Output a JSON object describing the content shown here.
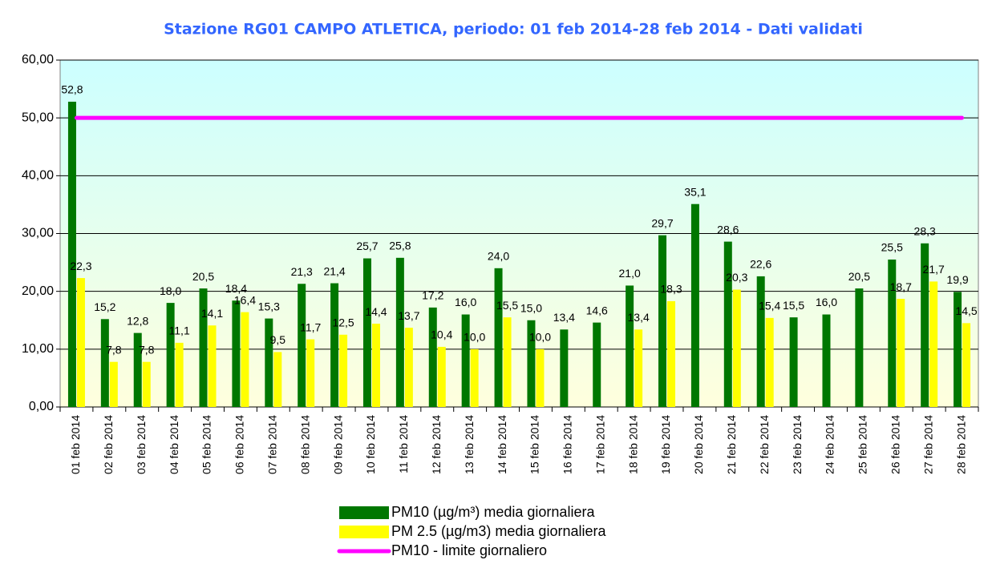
{
  "chart_data": {
    "type": "bar",
    "title": "Stazione RG01 CAMPO ATLETICA, periodo: 01 feb 2014-28 feb 2014 - Dati validati",
    "categories": [
      "01 feb 2014",
      "02 feb 2014",
      "03 feb 2014",
      "04 feb 2014",
      "05 feb 2014",
      "06 feb 2014",
      "07 feb 2014",
      "08 feb 2014",
      "09 feb 2014",
      "10 feb 2014",
      "11 feb 2014",
      "12 feb 2014",
      "13 feb 2014",
      "14 feb 2014",
      "15 feb 2014",
      "16 feb 2014",
      "17 feb 2014",
      "18 feb 2014",
      "19 feb 2014",
      "20 feb 2014",
      "21 feb 2014",
      "22 feb 2014",
      "23 feb 2014",
      "24 feb 2014",
      "25 feb 2014",
      "26 feb 2014",
      "27 feb 2014",
      "28 feb 2014"
    ],
    "series": [
      {
        "name": "PM10 (µg/m³) media giornaliera",
        "color": "#007700",
        "type": "bar",
        "values": [
          52.8,
          15.2,
          12.8,
          18.0,
          20.5,
          18.4,
          15.3,
          21.3,
          21.4,
          25.7,
          25.8,
          17.2,
          16.0,
          24.0,
          15.0,
          13.4,
          14.6,
          21.0,
          29.7,
          35.1,
          28.6,
          22.6,
          15.5,
          16.0,
          20.5,
          25.5,
          28.3,
          19.9
        ],
        "value_labels": [
          "52,8",
          "15,2",
          "12,8",
          "18,0",
          "20,5",
          "18,4",
          "15,3",
          "21,3",
          "21,4",
          "25,7",
          "25,8",
          "17,2",
          "16,0",
          "24,0",
          "15,0",
          "13,4",
          "14,6",
          "21,0",
          "29,7",
          "35,1",
          "28,6",
          "22,6",
          "15,5",
          "16,0",
          "20,5",
          "25,5",
          "28,3",
          "19,9"
        ]
      },
      {
        "name": "PM 2.5 (µg/m3) media giornaliera",
        "color": "#ffff00",
        "type": "bar",
        "values": [
          22.3,
          7.8,
          7.8,
          11.1,
          14.1,
          16.4,
          9.5,
          11.7,
          12.5,
          14.4,
          13.7,
          10.4,
          10.0,
          15.5,
          10.0,
          null,
          null,
          13.4,
          18.3,
          null,
          20.3,
          15.4,
          null,
          null,
          null,
          18.7,
          21.7,
          14.5
        ],
        "value_labels": [
          "22,3",
          "7,8",
          "7,8",
          "11,1",
          "14,1",
          "16,4",
          "9,5",
          "11,7",
          "12,5",
          "14,4",
          "13,7",
          "10,4",
          "10,0",
          "15,5",
          "10,0",
          null,
          null,
          "13,4",
          "18,3",
          null,
          "20,3",
          "15,4",
          null,
          null,
          null,
          "18,7",
          "21,7",
          "14,5"
        ]
      },
      {
        "name": "PM10 - limite giornaliero",
        "color": "#ff00ff",
        "type": "line",
        "values": [
          50,
          50,
          50,
          50,
          50,
          50,
          50,
          50,
          50,
          50,
          50,
          50,
          50,
          50,
          50,
          50,
          50,
          50,
          50,
          50,
          50,
          50,
          50,
          50,
          50,
          50,
          50,
          50
        ]
      }
    ],
    "ylim": [
      0,
      60
    ],
    "yticks": [
      {
        "value": 0,
        "label": "0,00"
      },
      {
        "value": 10,
        "label": "10,00"
      },
      {
        "value": 20,
        "label": "20,00"
      },
      {
        "value": 30,
        "label": "30,00"
      },
      {
        "value": 40,
        "label": "40,00"
      },
      {
        "value": 50,
        "label": "50,00"
      },
      {
        "value": 60,
        "label": "60,00"
      }
    ],
    "grid": true
  }
}
